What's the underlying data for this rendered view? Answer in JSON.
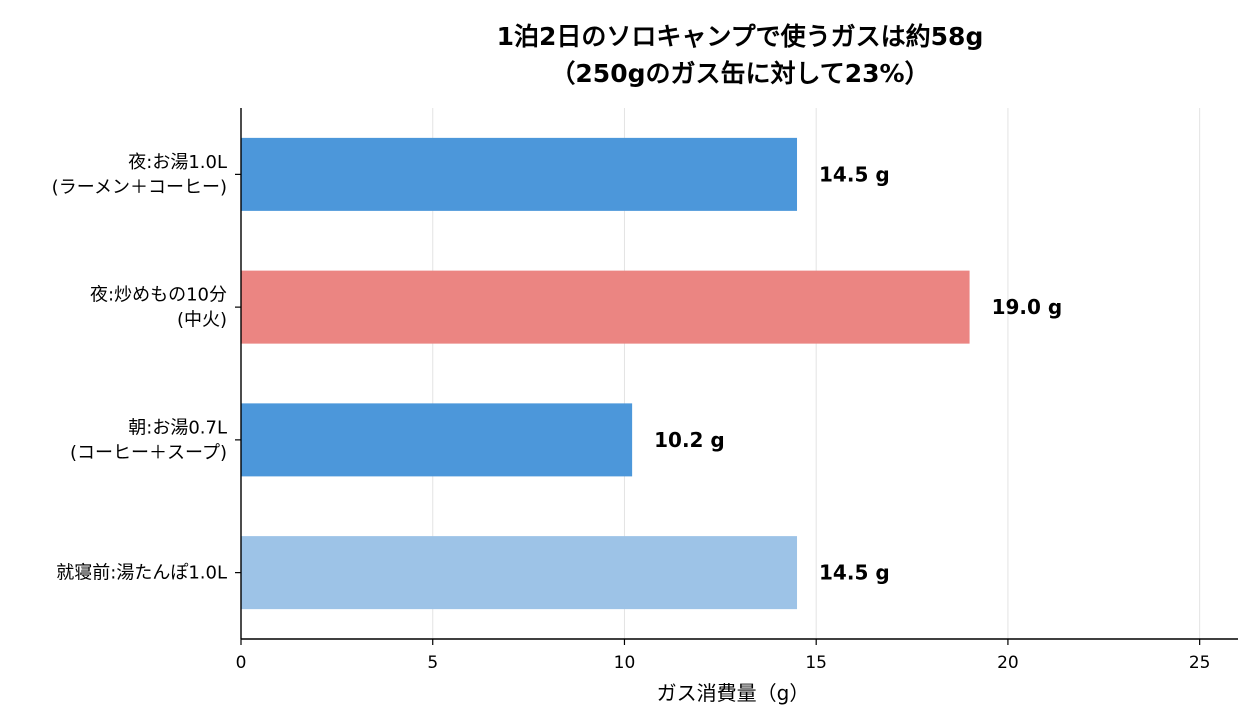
{
  "chart_data": {
    "type": "bar",
    "orientation": "horizontal",
    "title_lines": [
      "1泊2日のソロキャンプで使うガスは約58g",
      "（250gのガス缶に対して23%）"
    ],
    "xlabel": "ガス消費量（g）",
    "ylabel": "",
    "xlim": [
      0,
      26
    ],
    "xticks": [
      0,
      5,
      10,
      15,
      20,
      25
    ],
    "grid": "vertical",
    "categories": [
      [
        "夜:お湯1.0L",
        "(ラーメン＋コーヒー)"
      ],
      [
        "夜:炒めもの10分",
        "(中火)"
      ],
      [
        "朝:お湯0.7L",
        "(コーヒー＋スープ)"
      ],
      [
        "就寝前:湯たんぽ1.0L"
      ]
    ],
    "values": [
      14.5,
      19.0,
      10.2,
      14.5
    ],
    "value_labels": [
      "14.5 g",
      "19.0 g",
      "10.2 g",
      "14.5 g"
    ],
    "bar_colors": [
      "#4C97DA",
      "#EB8582",
      "#4C97DA",
      "#9DC3E7"
    ]
  }
}
